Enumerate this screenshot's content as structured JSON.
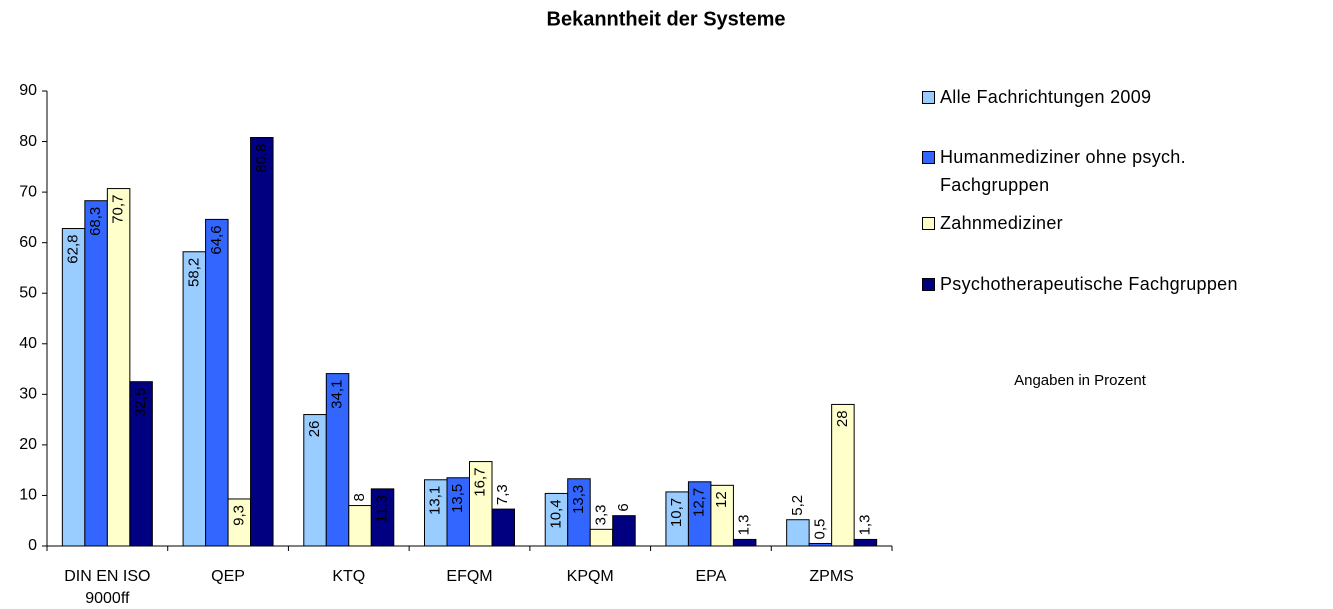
{
  "chart_data": {
    "type": "bar",
    "title": "Bekanntheit der Systeme",
    "annotation": "Angaben in Prozent",
    "categories": [
      "DIN EN ISO 9000ff",
      "QEP",
      "KTQ",
      "EFQM",
      "KPQM",
      "EPA",
      "ZPMS"
    ],
    "series": [
      {
        "name": "Alle Fachrichtungen 2009",
        "color": "#99ccff",
        "values": [
          62.8,
          58.2,
          26,
          13.1,
          10.4,
          10.7,
          5.2
        ],
        "value_labels": [
          "62,8",
          "58,2",
          "26",
          "13,1",
          "10,4",
          "10,7",
          "5,2"
        ]
      },
      {
        "name": "Humanmediziner ohne psych. Fachgruppen",
        "color": "#3366ff",
        "values": [
          68.3,
          64.6,
          34.1,
          13.5,
          13.3,
          12.7,
          0.5
        ],
        "value_labels": [
          "68,3",
          "64,6",
          "34,1",
          "13,5",
          "13,3",
          "12,7",
          "0,5"
        ]
      },
      {
        "name": "Zahnmediziner",
        "color": "#ffffcc",
        "values": [
          70.7,
          9.3,
          8,
          16.7,
          3.3,
          12,
          28
        ],
        "value_labels": [
          "70,7",
          "9,3",
          "8",
          "16,7",
          "3,3",
          "12",
          "28"
        ]
      },
      {
        "name": "Psychotherapeutische Fachgruppen",
        "color": "#000080",
        "values": [
          32.5,
          80.8,
          11.3,
          7.3,
          6,
          1.3,
          1.3
        ],
        "value_labels": [
          "32,5",
          "80,8",
          "11,3",
          "7,3",
          "6",
          "1,3",
          "1,3"
        ]
      }
    ],
    "ylim": [
      0,
      90
    ],
    "yticks": [
      0,
      10,
      20,
      30,
      40,
      50,
      60,
      70,
      80,
      90
    ],
    "grid": false,
    "legend": "right"
  }
}
